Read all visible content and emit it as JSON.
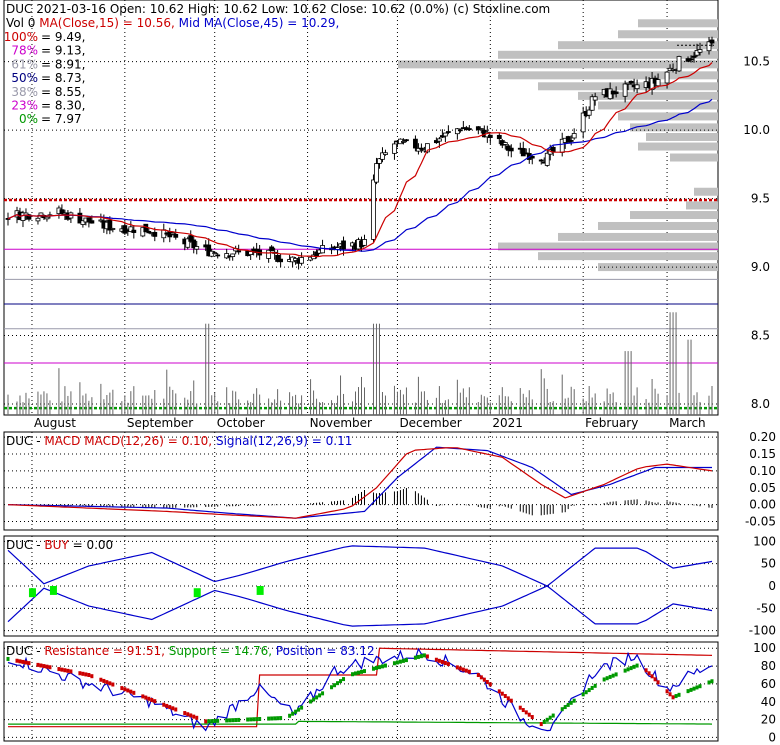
{
  "chart_data": [
    {
      "panel": "price",
      "type": "candlestick",
      "header": {
        "symbol": "DUC",
        "date": "2021-03-16",
        "open_label": "Open: 10.62",
        "high_label": "High: 10.62",
        "low_label": "Low: 10.62",
        "close_label": "Close: 10.62 (0.0%)",
        "source": "(c) Stoxline.com",
        "vol_label": "Vol 0",
        "ma15_label": "MA(Close,15) = 10.56,",
        "ma45_label": "Mid MA(Close,45) = 10.29,"
      },
      "fib_levels": [
        {
          "label": "100%",
          "value": "= 9.49,",
          "v": 9.49,
          "color": "#cc0000"
        },
        {
          "label": "78%",
          "value": "= 9.13,",
          "v": 9.13,
          "color": "#cc00cc"
        },
        {
          "label": "61%",
          "value": "= 8.91,",
          "v": 8.91,
          "color": "#9999aa"
        },
        {
          "label": "50%",
          "value": "= 8.73,",
          "v": 8.73,
          "color": "#000080"
        },
        {
          "label": "38%",
          "value": "= 8.55,",
          "v": 8.55,
          "color": "#9999aa"
        },
        {
          "label": "23%",
          "value": "= 8.30,",
          "v": 8.3,
          "color": "#cc00cc"
        },
        {
          "label": "0%",
          "value": "= 7.97",
          "v": 7.97,
          "color": "#009900"
        }
      ],
      "y_ticks": [
        "10.5",
        "10.0",
        "9.5",
        "9.0",
        "8.5",
        "8.0"
      ],
      "y_tick_values": [
        10.5,
        10.0,
        9.5,
        9.0,
        8.5,
        8.0
      ],
      "ylim": [
        7.92,
        10.95
      ],
      "x_labels": [
        "August",
        "September",
        "October",
        "November",
        "December",
        "2021",
        "February",
        "March"
      ],
      "x_label_dates": [
        "2020-08-01",
        "2020-09-01",
        "2020-10-01",
        "2020-11-01",
        "2020-12-01",
        "2021-01-01",
        "2021-02-01",
        "2021-03-01"
      ],
      "date_range": [
        "2020-07-24",
        "2021-03-16"
      ],
      "ma_colors": {
        "ma15": "#cc0000",
        "ma45": "#0000cc"
      },
      "close_anchors": [
        [
          "2020-07-24",
          9.38
        ],
        [
          "2020-08-10",
          9.4
        ],
        [
          "2020-08-25",
          9.3
        ],
        [
          "2020-09-10",
          9.27
        ],
        [
          "2020-09-28",
          9.12
        ],
        [
          "2020-10-15",
          9.1
        ],
        [
          "2020-10-28",
          9.05
        ],
        [
          "2020-11-06",
          9.12
        ],
        [
          "2020-11-20",
          9.18
        ],
        [
          "2020-11-24",
          9.75
        ],
        [
          "2020-11-30",
          9.9
        ],
        [
          "2020-12-10",
          9.88
        ],
        [
          "2020-12-22",
          10.02
        ],
        [
          "2020-12-30",
          9.98
        ],
        [
          "2021-01-08",
          9.85
        ],
        [
          "2021-01-20",
          9.8
        ],
        [
          "2021-01-28",
          9.95
        ],
        [
          "2021-02-05",
          10.25
        ],
        [
          "2021-02-15",
          10.3
        ],
        [
          "2021-02-25",
          10.35
        ],
        [
          "2021-03-05",
          10.5
        ],
        [
          "2021-03-16",
          10.62
        ]
      ],
      "volume_spikes": [
        [
          "2020-09-28",
          0.4
        ],
        [
          "2020-11-24",
          0.4
        ],
        [
          "2021-02-16",
          0.28
        ],
        [
          "2021-03-03",
          0.45
        ],
        [
          "2021-03-08",
          0.33
        ]
      ]
    },
    {
      "panel": "macd",
      "type": "line",
      "header": {
        "symbol": "DUC",
        "name": "MACD",
        "macd_label": "MACD(12,26) = 0.10,",
        "signal_label": "Signal(12,26,9) = 0.11"
      },
      "y_ticks": [
        "0.20",
        "0.15",
        "0.10",
        "0.05",
        "0.00",
        "-0.05"
      ],
      "y_tick_values": [
        0.2,
        0.15,
        0.1,
        0.05,
        0.0,
        -0.05
      ],
      "ylim": [
        -0.075,
        0.215
      ],
      "series": [
        {
          "name": "MACD(12,26)",
          "color": "#cc0000",
          "anchors": [
            [
              "2020-07-24",
              0.0
            ],
            [
              "2020-09-15",
              -0.02
            ],
            [
              "2020-10-05",
              -0.03
            ],
            [
              "2020-10-28",
              -0.04
            ],
            [
              "2020-11-15",
              -0.01
            ],
            [
              "2020-11-24",
              0.05
            ],
            [
              "2020-12-05",
              0.16
            ],
            [
              "2020-12-20",
              0.17
            ],
            [
              "2021-01-05",
              0.14
            ],
            [
              "2021-01-18",
              0.06
            ],
            [
              "2021-01-26",
              0.02
            ],
            [
              "2021-02-08",
              0.06
            ],
            [
              "2021-02-20",
              0.11
            ],
            [
              "2021-03-01",
              0.12
            ],
            [
              "2021-03-16",
              0.1
            ]
          ]
        },
        {
          "name": "Signal(12,26,9)",
          "color": "#0000cc",
          "anchors": [
            [
              "2020-07-24",
              0.0
            ],
            [
              "2020-09-15",
              -0.01
            ],
            [
              "2020-10-05",
              -0.025
            ],
            [
              "2020-10-28",
              -0.04
            ],
            [
              "2020-11-20",
              -0.02
            ],
            [
              "2020-12-01",
              0.08
            ],
            [
              "2020-12-14",
              0.17
            ],
            [
              "2020-12-31",
              0.16
            ],
            [
              "2021-01-15",
              0.11
            ],
            [
              "2021-01-28",
              0.03
            ],
            [
              "2021-02-10",
              0.06
            ],
            [
              "2021-02-25",
              0.11
            ],
            [
              "2021-03-16",
              0.11
            ]
          ]
        }
      ]
    },
    {
      "panel": "buy",
      "type": "line",
      "header": {
        "symbol": "DUC",
        "name": "BUY",
        "value_label": "= 0.00"
      },
      "y_ticks": [
        "100",
        "50",
        "0",
        "-50",
        "-100"
      ],
      "y_tick_values": [
        100,
        50,
        0,
        -50,
        -100
      ],
      "ylim": [
        -112,
        112
      ],
      "line_color": "#0000cc",
      "buy_color": "#00ee00",
      "upper_anchors": [
        [
          "2020-07-24",
          80
        ],
        [
          "2020-08-05",
          5
        ],
        [
          "2020-08-20",
          45
        ],
        [
          "2020-09-10",
          75
        ],
        [
          "2020-10-01",
          10
        ],
        [
          "2020-10-10",
          25
        ],
        [
          "2020-10-25",
          55
        ],
        [
          "2020-11-15",
          90
        ],
        [
          "2020-12-10",
          85
        ],
        [
          "2021-01-05",
          45
        ],
        [
          "2021-01-20",
          0
        ],
        [
          "2021-02-05",
          -85
        ],
        [
          "2021-02-20",
          -85
        ],
        [
          "2021-03-03",
          -40
        ],
        [
          "2021-03-16",
          -55
        ]
      ],
      "lower_anchors": [
        [
          "2020-07-24",
          -80
        ],
        [
          "2020-08-05",
          -5
        ],
        [
          "2020-08-20",
          -45
        ],
        [
          "2020-09-10",
          -75
        ],
        [
          "2020-10-01",
          -10
        ],
        [
          "2020-10-10",
          -25
        ],
        [
          "2020-10-25",
          -55
        ],
        [
          "2020-11-15",
          -90
        ],
        [
          "2020-12-10",
          -85
        ],
        [
          "2021-01-05",
          -45
        ],
        [
          "2021-01-20",
          0
        ],
        [
          "2021-02-05",
          85
        ],
        [
          "2021-02-20",
          85
        ],
        [
          "2021-03-03",
          40
        ],
        [
          "2021-03-16",
          55
        ]
      ],
      "buy_signals": [
        [
          "2020-08-01",
          -15
        ],
        [
          "2020-08-08",
          -10
        ],
        [
          "2020-09-25",
          -15
        ],
        [
          "2020-10-16",
          -10
        ]
      ]
    },
    {
      "panel": "sr",
      "type": "line",
      "header": {
        "symbol": "DUC",
        "resistance_label": "Resistance = 91.51,",
        "support_label": "Support = 14.76,",
        "position_label": "Position = 83.12"
      },
      "y_ticks": [
        "100",
        "80",
        "60",
        "40",
        "20",
        "0"
      ],
      "y_tick_values": [
        100,
        80,
        60,
        40,
        20,
        0
      ],
      "ylim": [
        -4,
        107
      ],
      "resistance_color": "#cc0000",
      "support_color": "#009900",
      "position_color": "#0000cc",
      "resistance_anchors": [
        [
          "2020-07-24",
          12
        ],
        [
          "2020-10-15",
          12
        ],
        [
          "2020-10-16",
          70
        ],
        [
          "2020-11-24",
          70
        ],
        [
          "2020-11-25",
          100
        ],
        [
          "2021-03-16",
          92
        ]
      ],
      "support_anchors": [
        [
          "2020-07-24",
          15
        ],
        [
          "2020-10-28",
          15
        ],
        [
          "2020-10-29",
          18
        ],
        [
          "2021-03-16",
          15
        ]
      ],
      "position_anchors": [
        [
          "2020-07-24",
          90
        ],
        [
          "2020-08-15",
          65
        ],
        [
          "2020-09-10",
          40
        ],
        [
          "2020-09-28",
          10
        ],
        [
          "2020-10-15",
          55
        ],
        [
          "2020-10-28",
          25
        ],
        [
          "2020-11-10",
          75
        ],
        [
          "2020-11-20",
          85
        ],
        [
          "2020-12-10",
          95
        ],
        [
          "2020-12-28",
          70
        ],
        [
          "2021-01-12",
          20
        ],
        [
          "2021-01-22",
          10
        ],
        [
          "2021-02-05",
          75
        ],
        [
          "2021-02-18",
          92
        ],
        [
          "2021-03-01",
          55
        ],
        [
          "2021-03-16",
          83
        ]
      ],
      "overlay_anchors": [
        [
          "2020-07-24",
          88
        ],
        [
          "2020-08-20",
          70
        ],
        [
          "2020-09-28",
          18
        ],
        [
          "2020-10-25",
          22
        ],
        [
          "2020-11-15",
          70
        ],
        [
          "2020-12-10",
          92
        ],
        [
          "2020-12-28",
          70
        ],
        [
          "2021-01-18",
          15
        ],
        [
          "2021-02-08",
          65
        ],
        [
          "2021-02-20",
          82
        ],
        [
          "2021-03-03",
          45
        ],
        [
          "2021-03-16",
          63
        ]
      ]
    }
  ]
}
